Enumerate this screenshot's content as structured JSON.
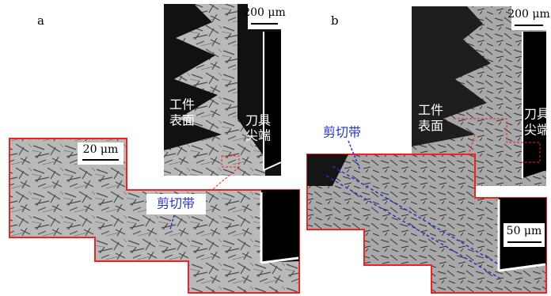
{
  "panels": [
    {
      "label": "a",
      "overview": {
        "scale_bar": "200 μm",
        "workpiece_label": [
          "工件",
          "表面"
        ],
        "tool_label": [
          "刀具",
          "尖端"
        ]
      },
      "inset": {
        "scale_bar": "20 μm",
        "shear_band_label": "剪切带"
      }
    },
    {
      "label": "b",
      "overview": {
        "scale_bar": "200 μm",
        "workpiece_label": [
          "工件",
          "表面"
        ],
        "tool_label": [
          "刀具",
          "尖端"
        ]
      },
      "inset": {
        "scale_bar": "50 μm",
        "shear_band_label": "剪切带"
      }
    }
  ]
}
